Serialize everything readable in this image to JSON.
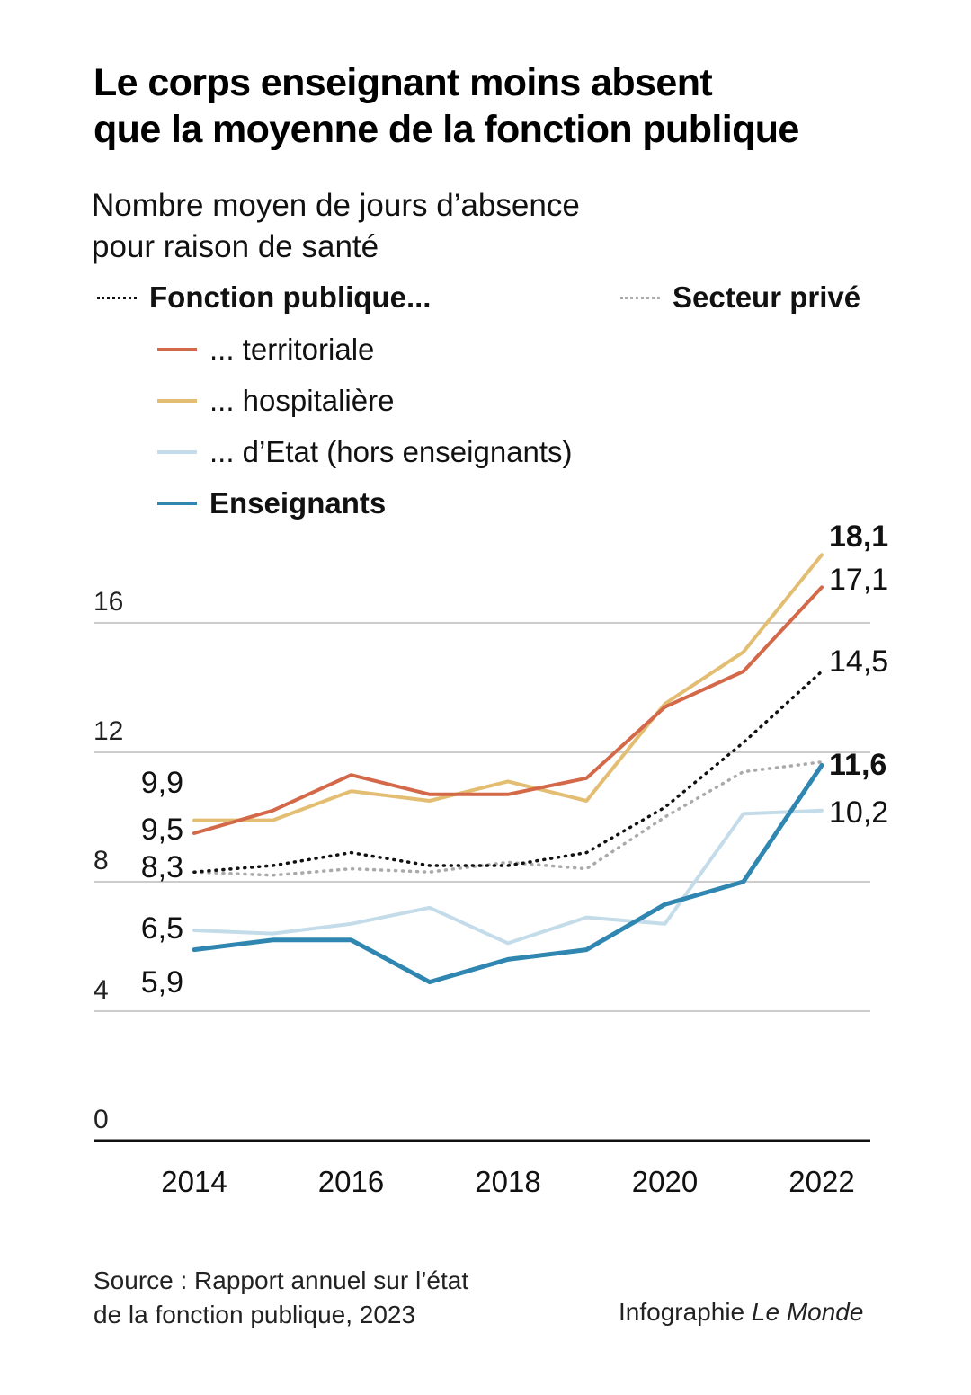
{
  "title_lines": [
    "Le corps enseignant moins absent",
    "que la moyenne de la fonction publique"
  ],
  "subtitle_lines": [
    "Nombre moyen de jours d’absence",
    "pour raison de santé"
  ],
  "legend": {
    "fonction_publique": "Fonction publique...",
    "secteur_prive": "Secteur privé",
    "territoriale": "... territoriale",
    "hospitaliere": "... hospitalière",
    "etat": "... d’Etat (hors enseignants)",
    "enseignants": "Enseignants"
  },
  "colors": {
    "fonction_publique": "#111111",
    "secteur_prive": "#aaaaaa",
    "territoriale": "#d4694a",
    "hospitaliere": "#e3be72",
    "etat": "#c4dcea",
    "enseignants": "#2f87b1",
    "grid": "#bbbbbb",
    "axis": "#111111"
  },
  "chart_data": {
    "type": "line",
    "x": [
      2014,
      2015,
      2016,
      2017,
      2018,
      2019,
      2020,
      2021,
      2022
    ],
    "xticks": [
      "2014",
      "2016",
      "2018",
      "2020",
      "2022"
    ],
    "xtick_values": [
      2014,
      2016,
      2018,
      2020,
      2022
    ],
    "yticks": [
      "0",
      "4",
      "8",
      "12",
      "16"
    ],
    "ytick_values": [
      0,
      4,
      8,
      12,
      16
    ],
    "ylim": [
      0,
      18.5
    ],
    "grid": true,
    "series": [
      {
        "key": "etat",
        "name": "... d’Etat (hors enseignants)",
        "style": "solid",
        "values": [
          6.5,
          6.4,
          6.7,
          7.2,
          6.1,
          6.9,
          6.7,
          10.1,
          10.2
        ],
        "start_label": "6,5",
        "end_label": "10,2"
      },
      {
        "key": "secteur_prive",
        "name": "Secteur privé",
        "style": "dotted",
        "values": [
          8.3,
          8.2,
          8.4,
          8.3,
          8.6,
          8.4,
          10.0,
          11.4,
          11.7
        ]
      },
      {
        "key": "fonction_publique",
        "name": "Fonction publique...",
        "style": "dotted",
        "values": [
          8.3,
          8.5,
          8.9,
          8.5,
          8.5,
          8.9,
          10.3,
          12.3,
          14.5
        ],
        "start_label": "8,3",
        "end_label": "14,5"
      },
      {
        "key": "hospitaliere",
        "name": "... hospitalière",
        "style": "solid",
        "values": [
          9.9,
          9.9,
          10.8,
          10.5,
          11.1,
          10.5,
          13.5,
          15.1,
          18.1
        ],
        "start_label": "9,9",
        "end_label": "18,1",
        "end_bold": true
      },
      {
        "key": "territoriale",
        "name": "... territoriale",
        "style": "solid",
        "values": [
          9.5,
          10.2,
          11.3,
          10.7,
          10.7,
          11.2,
          13.4,
          14.5,
          17.1
        ],
        "start_label": "9,5",
        "end_label": "17,1"
      },
      {
        "key": "enseignants",
        "name": "Enseignants",
        "style": "solid",
        "values": [
          5.9,
          6.2,
          6.2,
          4.9,
          5.6,
          5.9,
          7.3,
          8.0,
          11.6
        ],
        "start_label": "5,9",
        "end_label": "11,6",
        "end_bold": true
      }
    ]
  },
  "footer": {
    "source_lines": [
      "Source : Rapport annuel sur l’état",
      "de la fonction publique, 2023"
    ],
    "credit_prefix": "Infographie ",
    "credit_brand": "Le Monde"
  }
}
